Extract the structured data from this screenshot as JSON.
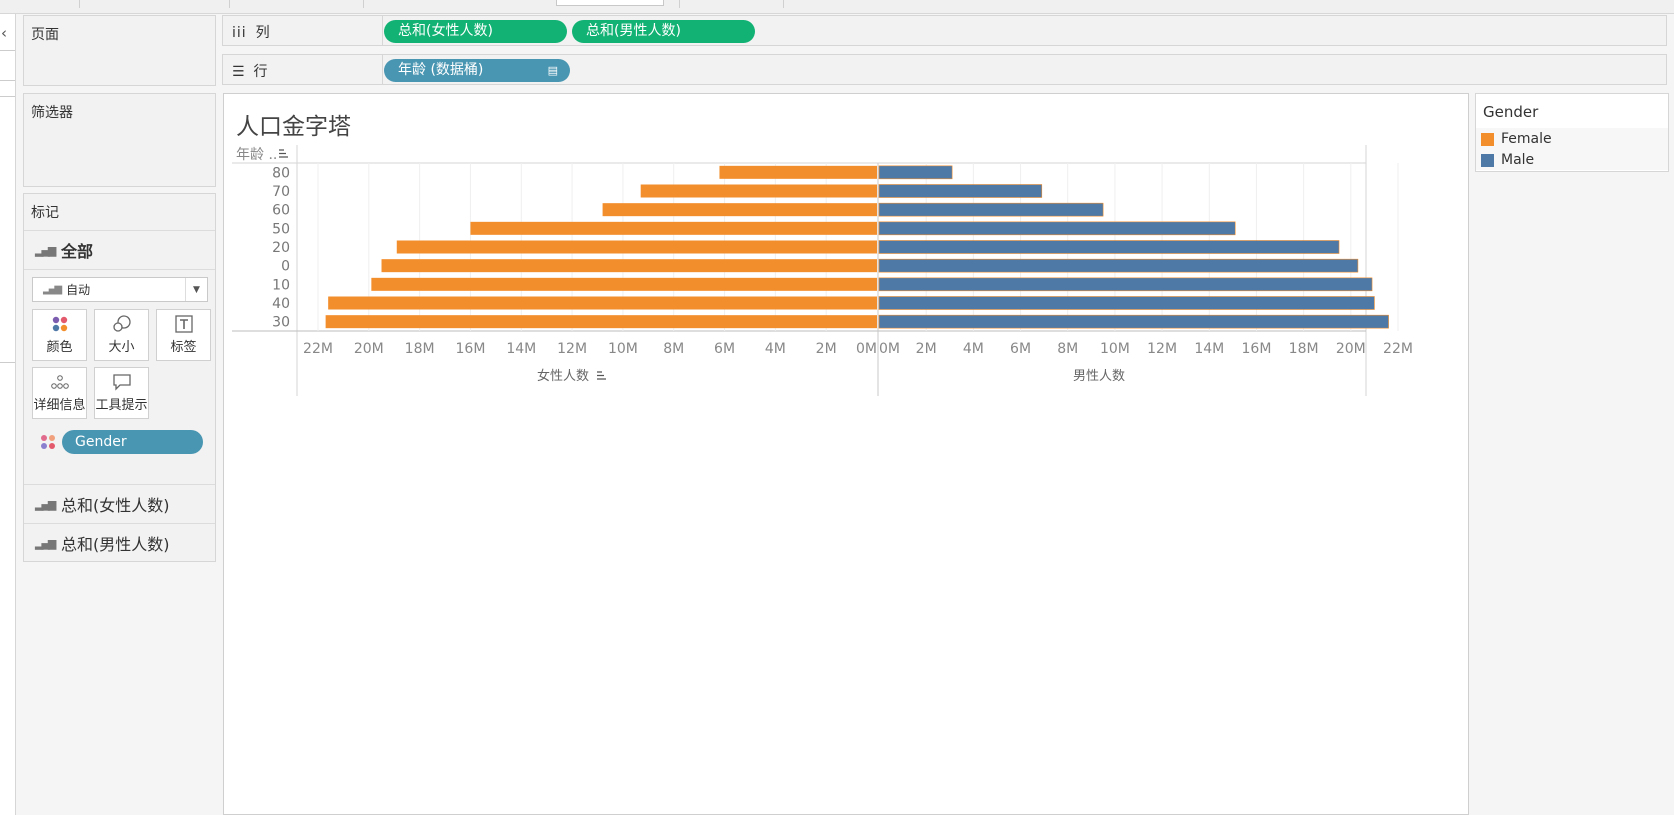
{
  "shelves": {
    "pages_title": "页面",
    "filters_title": "筛选器",
    "columns_label": "列",
    "rows_label": "行",
    "column_pills": [
      "总和(女性人数)",
      "总和(男性人数)"
    ],
    "row_pill": "年龄 (数据桶)"
  },
  "marks": {
    "title": "标记",
    "all_label": "全部",
    "mark_type": "自动",
    "buttons": {
      "color": "颜色",
      "size": "大小",
      "label": "标签",
      "detail": "详细信息",
      "tooltip": "工具提示"
    },
    "gender_pill": "Gender",
    "measure_rows": [
      "总和(女性人数)",
      "总和(男性人数)"
    ]
  },
  "viz": {
    "title": "人口金字塔",
    "row_header": "年龄 ..",
    "left_axis_title": "女性人数",
    "right_axis_title": "男性人数"
  },
  "legend": {
    "title": "Gender",
    "items": [
      {
        "label": "Female",
        "color": "#f28e2b"
      },
      {
        "label": "Male",
        "color": "#4e79a7"
      }
    ]
  },
  "chart_data": {
    "type": "bar",
    "title": "人口金字塔",
    "categories": [
      "80",
      "70",
      "60",
      "50",
      "20",
      "0",
      "10",
      "40",
      "30"
    ],
    "series": [
      {
        "name": "Female",
        "axis": "女性人数",
        "color": "#f28e2b",
        "values": [
          6.2,
          9.3,
          10.8,
          16.0,
          18.9,
          19.5,
          19.9,
          21.6,
          21.7
        ]
      },
      {
        "name": "Male",
        "axis": "男性人数",
        "color": "#4e79a7",
        "values": [
          3.1,
          6.9,
          9.5,
          15.1,
          19.5,
          20.3,
          20.9,
          21.0,
          21.6
        ]
      }
    ],
    "unit": "M",
    "xlim": [
      0,
      22
    ],
    "tick_labels": [
      "0M",
      "2M",
      "4M",
      "6M",
      "8M",
      "10M",
      "12M",
      "14M",
      "16M",
      "18M",
      "20M",
      "22M"
    ],
    "xlabel_left": "女性人数",
    "xlabel_right": "男性人数",
    "ylabel": "年龄 ..",
    "grid": true,
    "legend": "right"
  }
}
